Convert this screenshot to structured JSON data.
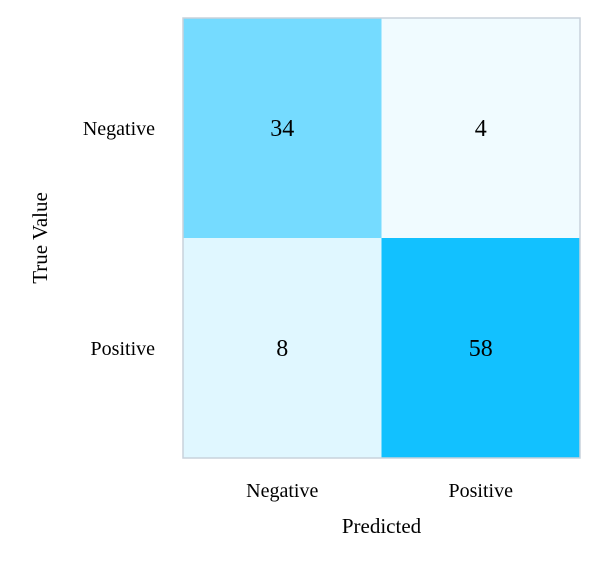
{
  "chart_data": {
    "type": "heatmap",
    "title": "",
    "xlabel": "Predicted",
    "ylabel": "True Value",
    "x_categories": [
      "Negative",
      "Positive"
    ],
    "y_categories": [
      "Negative",
      "Positive"
    ],
    "values": [
      [
        34,
        4
      ],
      [
        8,
        58
      ]
    ],
    "colormap": {
      "low": "#f0fbff",
      "high": "#12c1ff"
    },
    "frame_color": "#c8d2dc",
    "grid": false,
    "legend": "none"
  }
}
